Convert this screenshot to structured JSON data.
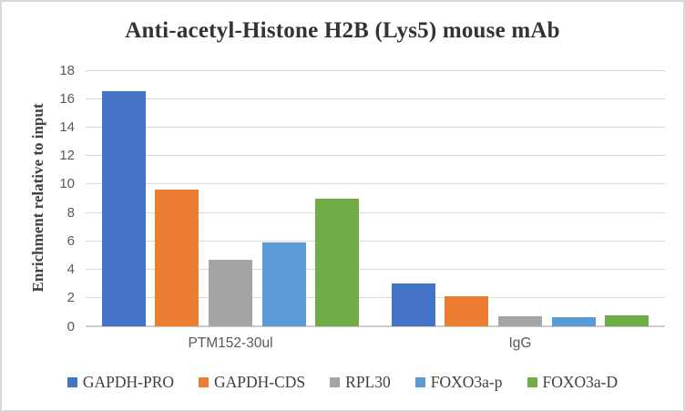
{
  "chart_data": {
    "type": "bar",
    "title": "Anti-acetyl-Histone H2B (Lys5) mouse mAb",
    "ylabel": "Enrichment relative to input",
    "xlabel": "",
    "categories": [
      "PTM152-30ul",
      "IgG"
    ],
    "series": [
      {
        "name": "GAPDH-PRO",
        "color": "#4472C4",
        "values": [
          16.5,
          3.0
        ]
      },
      {
        "name": "GAPDH-CDS",
        "color": "#ED7D31",
        "values": [
          9.6,
          2.1
        ]
      },
      {
        "name": "RPL30",
        "color": "#A5A5A5",
        "values": [
          4.7,
          0.7
        ]
      },
      {
        "name": "FOXO3a-p",
        "color": "#5B9BD5",
        "values": [
          5.9,
          0.65
        ]
      },
      {
        "name": "FOXO3a-D",
        "color": "#70AD47",
        "values": [
          9.0,
          0.8
        ]
      }
    ],
    "ylim": [
      0,
      18
    ],
    "yticks": [
      0,
      2,
      4,
      6,
      8,
      10,
      12,
      14,
      16,
      18
    ],
    "grid": true,
    "legend_position": "bottom",
    "colors": {
      "gridline": "#D9D9D9",
      "axis_line": "#CCCCCC",
      "tick_label": "#595959",
      "title_text": "#333333",
      "axis_title_text": "#404040",
      "legend_text": "#404040",
      "frame_border": "#D9D9D9",
      "background": "#FFFFFF"
    }
  }
}
